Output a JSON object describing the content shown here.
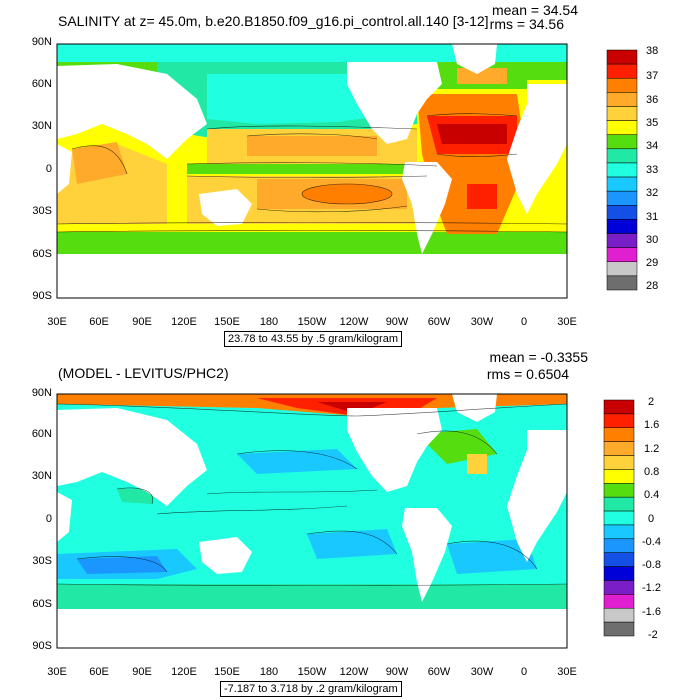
{
  "panels": [
    {
      "title": "SALINITY at z=  45.0m, b.e20.B1850.f09_g16.pi_control.all.140 [3-12]",
      "mean": "mean = 34.54",
      "rms": "rms = 34.56",
      "note": "23.78 to 43.55 by .5 gram/kilogram",
      "lat_labels": [
        "90N",
        "60N",
        "30N",
        "0",
        "30S",
        "60S",
        "90S"
      ],
      "lon_labels": [
        "30E",
        "60E",
        "90E",
        "120E",
        "150E",
        "180",
        "150W",
        "120W",
        "90W",
        "60W",
        "30W",
        "0",
        "30E"
      ],
      "colorbar": {
        "labels": [
          "38",
          "37",
          "36",
          "35",
          "34",
          "33",
          "32",
          "31",
          "30",
          "29",
          "28"
        ],
        "colors": [
          "#c80000",
          "#ff2000",
          "#ff8000",
          "#ffaa2a",
          "#ffd23c",
          "#ffff00",
          "#55dd10",
          "#22e8a6",
          "#20ffe0",
          "#18c8ff",
          "#1c96ff",
          "#1450e6",
          "#0000d8",
          "#7a1ec8",
          "#e020d0",
          "#c8c8c8",
          "#6e6e6e"
        ]
      }
    },
    {
      "title": "(MODEL - LEVITUS/PHC2)",
      "mean": "mean = -0.3355",
      "rms": "rms = 0.6504",
      "note": "-7.187 to 3.718 by .2 gram/kilogram",
      "lat_labels": [
        "90N",
        "60N",
        "30N",
        "0",
        "30S",
        "60S",
        "90S"
      ],
      "lon_labels": [
        "30E",
        "60E",
        "90E",
        "120E",
        "150E",
        "180",
        "150W",
        "120W",
        "90W",
        "60W",
        "30W",
        "0",
        "30E"
      ],
      "colorbar": {
        "labels": [
          "2",
          "1.6",
          "1.2",
          "0.8",
          "0.4",
          "0",
          "-0.4",
          "-0.8",
          "-1.2",
          "-1.6",
          "-2"
        ],
        "colors": [
          "#c80000",
          "#ff2000",
          "#ff8000",
          "#ffaa2a",
          "#ffd23c",
          "#ffff00",
          "#55dd10",
          "#22e8a6",
          "#20ffe0",
          "#18c8ff",
          "#1c96ff",
          "#1450e6",
          "#0000d8",
          "#7a1ec8",
          "#e020d0",
          "#c8c8c8",
          "#6e6e6e"
        ]
      }
    }
  ]
}
